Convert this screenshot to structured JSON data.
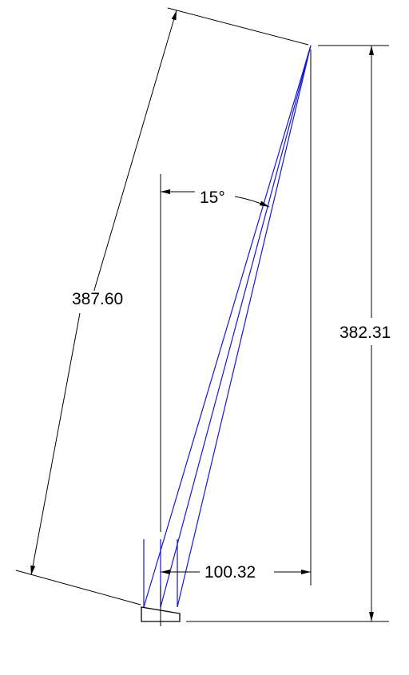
{
  "dimensions": {
    "length": "387.60",
    "angle": "15°",
    "height": "382.31",
    "width": "100.32"
  },
  "colors": {
    "geometry": "#1515d6",
    "annotation": "#000000",
    "background": "#ffffff"
  }
}
